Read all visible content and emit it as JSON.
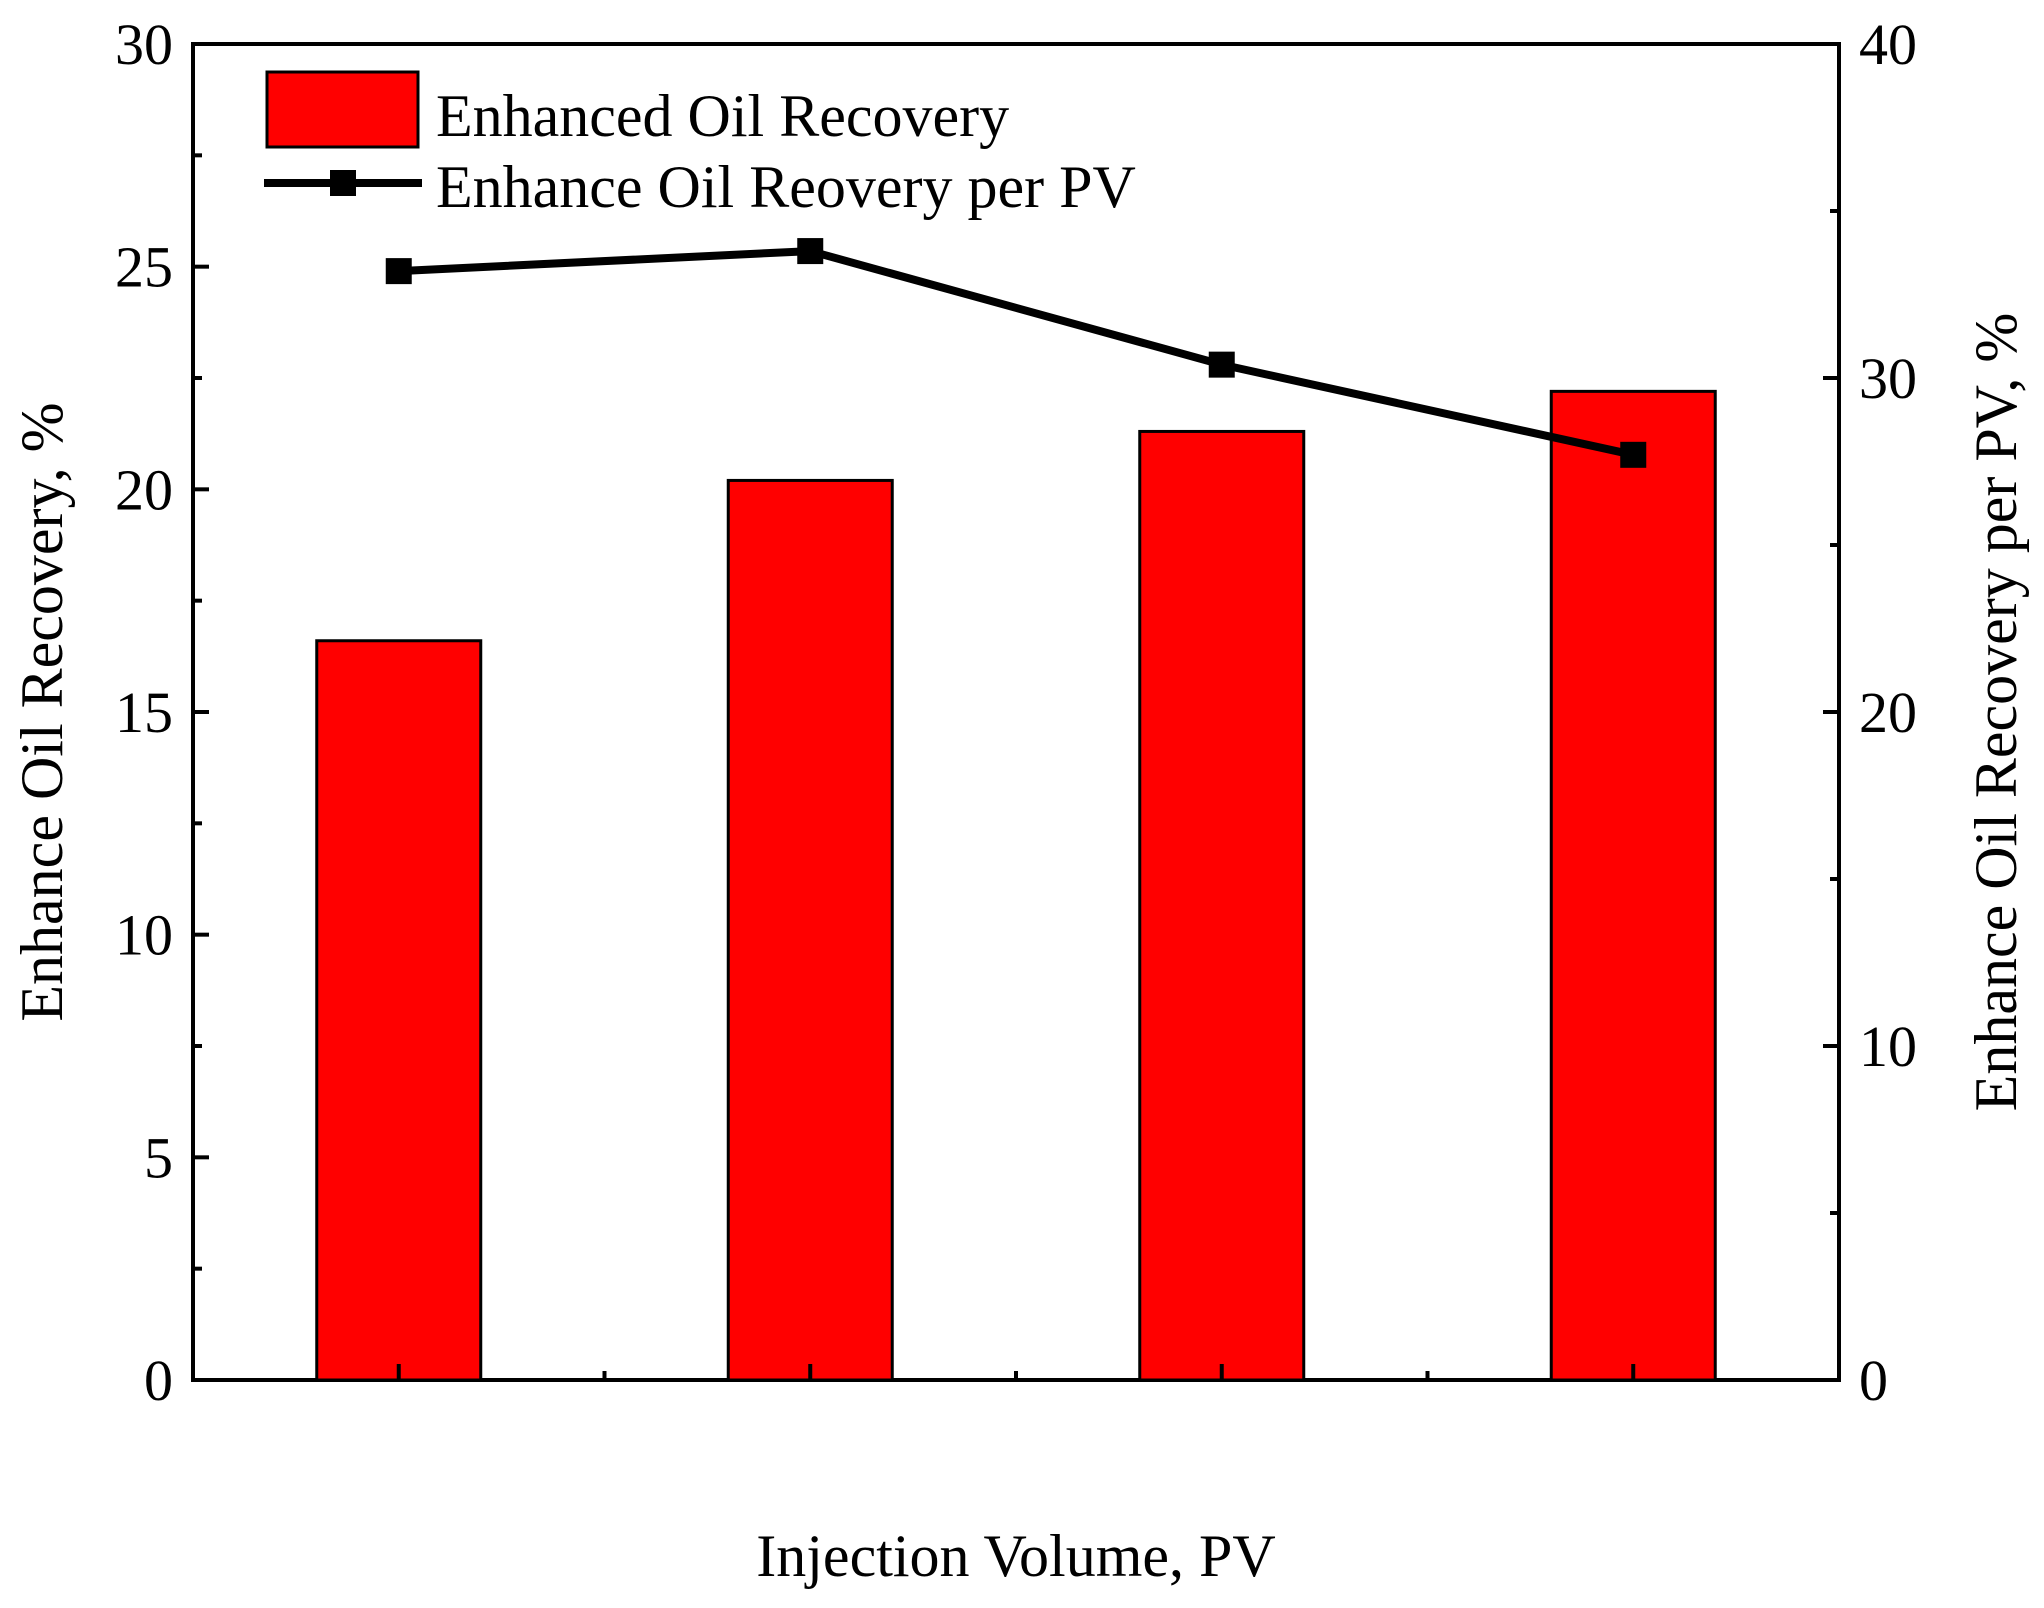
{
  "chart_data": {
    "type": "bar+line",
    "xlabel": "Injection Volume, PV",
    "ylabel_left": "Enhance Oil Recovery, %",
    "ylabel_right": "Enhance Oil Recovery per PV, %",
    "xlim": [
      0,
      8
    ],
    "x_major_ticks": [
      1,
      3,
      5,
      7
    ],
    "x_minor_ticks": [
      2,
      4,
      6
    ],
    "ylim_left": [
      0,
      30
    ],
    "yticks_left": [
      0,
      5,
      10,
      15,
      20,
      25,
      30
    ],
    "ylim_right": [
      0,
      40
    ],
    "yticks_right": [
      0,
      10,
      20,
      30,
      40
    ],
    "x": [
      1,
      3,
      5,
      7
    ],
    "series": [
      {
        "name": "Enhanced Oil Recovery",
        "type": "bar",
        "axis": "left",
        "color": "#ff0000",
        "values": [
          16.6,
          20.2,
          21.3,
          22.2
        ]
      },
      {
        "name": "Enhance Oil Reovery per PV",
        "type": "line",
        "axis": "right",
        "color": "#000000",
        "marker": "square",
        "values": [
          33.2,
          33.8,
          30.4,
          27.7
        ]
      }
    ],
    "legend_position": "top-left",
    "grid": false
  }
}
